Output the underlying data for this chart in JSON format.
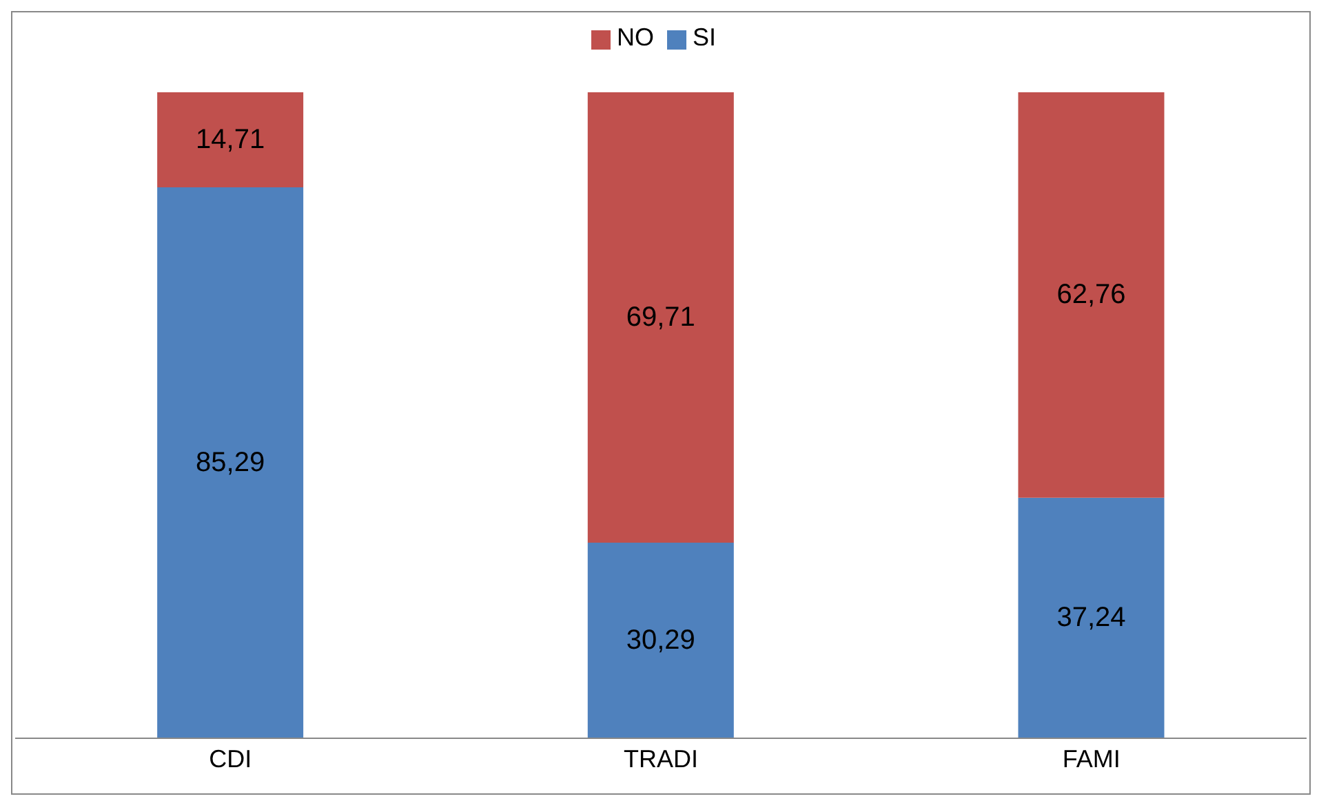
{
  "chart_data": {
    "type": "bar",
    "stacked": true,
    "categories": [
      "CDI",
      "TRADI",
      "FAMI"
    ],
    "legend": "top",
    "grid": false,
    "series": [
      {
        "name": "SI",
        "color": "#4f81bd",
        "values": [
          85.29,
          30.29,
          37.24
        ],
        "value_labels": [
          "85,29",
          "30,29",
          "37,24"
        ]
      },
      {
        "name": "NO",
        "color": "#c0504d",
        "values": [
          14.71,
          69.71,
          62.76
        ],
        "value_labels": [
          "14,71",
          "69,71",
          "62,76"
        ]
      }
    ]
  }
}
